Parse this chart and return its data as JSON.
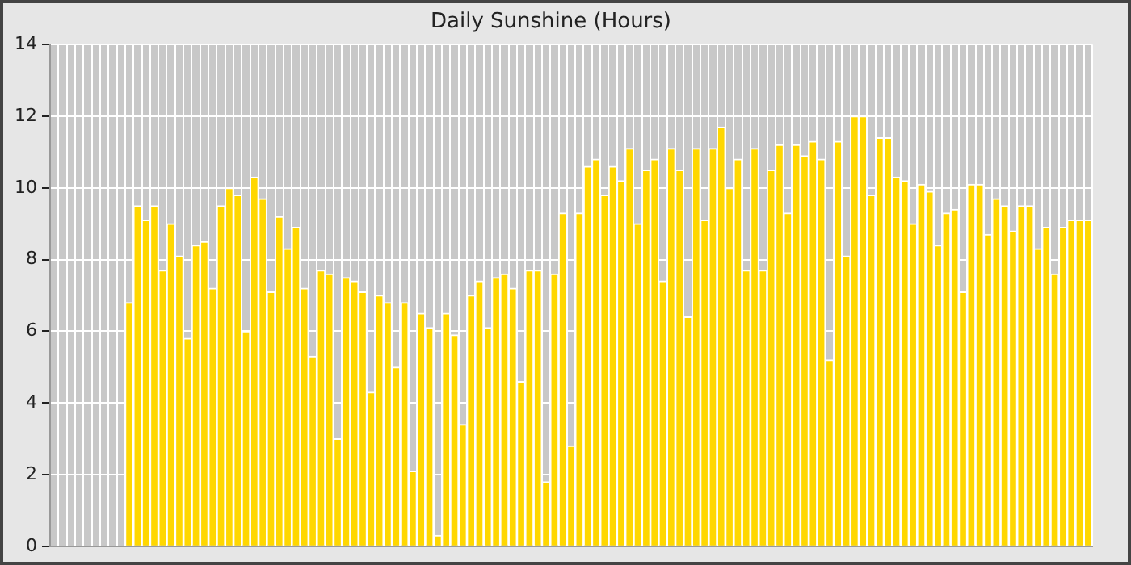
{
  "chart_data": {
    "type": "bar",
    "title": "Daily Sunshine (Hours)",
    "categories": [
      null,
      null,
      null,
      null,
      null,
      null,
      null,
      null,
      null,
      null,
      null,
      null,
      null,
      null,
      null,
      null,
      null,
      null,
      null,
      null,
      null,
      null,
      null,
      null,
      null,
      null,
      null,
      null,
      null,
      null,
      null,
      null,
      null,
      null,
      null,
      null,
      null,
      null,
      null,
      null,
      null,
      null,
      null,
      null,
      null,
      null,
      null,
      null,
      null,
      null,
      null,
      null,
      null,
      null,
      null,
      null,
      null,
      null,
      null,
      null,
      null,
      null,
      null,
      null,
      null,
      null,
      null,
      null,
      null,
      null,
      null,
      null,
      null,
      null,
      null,
      null,
      null,
      null,
      null,
      null,
      null,
      null,
      null,
      null,
      null,
      null,
      null,
      null,
      null,
      null,
      null,
      null,
      null,
      null,
      null,
      null,
      null,
      null,
      null,
      null,
      null,
      null,
      null,
      null,
      null,
      null,
      null,
      null,
      null,
      null,
      null,
      null,
      null,
      null,
      null,
      null,
      null,
      null,
      null,
      null,
      null,
      null,
      null,
      null,
      null
    ],
    "values": [
      null,
      null,
      null,
      null,
      null,
      null,
      null,
      null,
      null,
      6.8,
      9.5,
      9.1,
      9.5,
      7.7,
      9.0,
      8.1,
      5.8,
      8.4,
      8.5,
      7.2,
      9.5,
      10.0,
      9.8,
      6.0,
      10.3,
      9.7,
      7.1,
      9.2,
      8.3,
      8.9,
      7.2,
      5.3,
      7.7,
      7.6,
      3.0,
      7.5,
      7.4,
      7.1,
      4.3,
      7.0,
      6.8,
      5.0,
      6.8,
      2.1,
      6.5,
      6.1,
      0.3,
      6.5,
      5.9,
      3.4,
      7.0,
      7.4,
      6.1,
      7.5,
      7.6,
      7.2,
      4.6,
      7.7,
      7.7,
      1.8,
      7.6,
      9.3,
      2.8,
      9.3,
      10.6,
      10.8,
      9.8,
      10.6,
      10.2,
      11.1,
      9.0,
      10.5,
      10.8,
      7.4,
      11.1,
      10.5,
      6.4,
      11.1,
      9.1,
      11.1,
      11.7,
      10.0,
      10.8,
      7.7,
      11.1,
      7.7,
      10.5,
      11.2,
      9.3,
      11.2,
      10.9,
      11.3,
      10.8,
      5.2,
      11.3,
      8.1,
      12.0,
      12.0,
      9.8,
      11.4,
      11.4,
      10.3,
      10.2,
      9.0,
      10.1,
      9.9,
      8.4,
      9.3,
      9.4,
      7.1,
      10.1,
      10.1,
      8.7,
      9.7,
      9.5,
      8.8,
      9.5,
      9.5,
      8.3,
      8.9,
      7.6,
      8.9,
      9.1,
      9.1,
      9.1
    ],
    "color": "#ffd700",
    "ylim": [
      0,
      14
    ],
    "yticks": [
      0,
      2,
      4,
      6,
      8,
      10,
      12,
      14
    ],
    "grid": true,
    "tick_labels": "y"
  }
}
